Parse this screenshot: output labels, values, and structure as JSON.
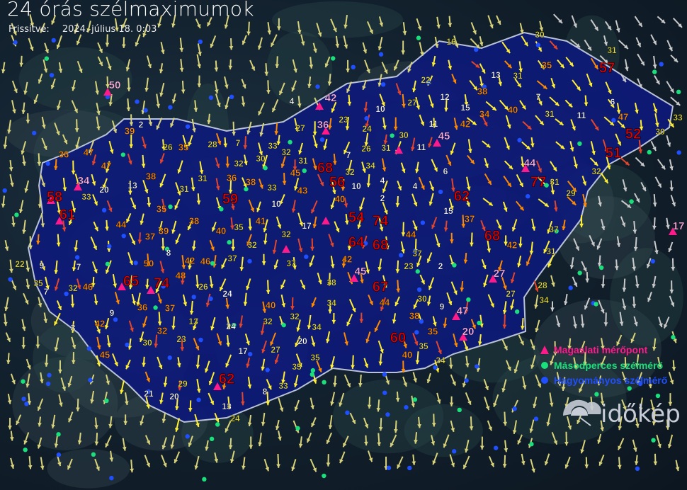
{
  "header": {
    "title": "24 órás szélmaximumok",
    "updated_label": "Frissítve:",
    "updated_value": "2024. július 18. 0:03"
  },
  "legend": [
    {
      "label": "Magaslati mérőpont",
      "symbol": "triangle",
      "color": "#ff1a8c"
    },
    {
      "label": "Másodperces szélmérő",
      "symbol": "circle",
      "color": "#19e07a"
    },
    {
      "label": "Hagyományos szélmérő",
      "symbol": "circle",
      "color": "#1f4fff"
    }
  ],
  "logo": {
    "text": "időkép"
  },
  "colors": {
    "red": "#e00000",
    "orange": "#ff8a00",
    "yellow": "#e6dc3c",
    "white": "#ffffff",
    "pink": "#ffb0e0",
    "country": "#0d1a7a",
    "border": "#b9c2d6"
  },
  "stations": {
    "red": [
      "57",
      "52",
      "51",
      "77",
      "62",
      "68",
      "74",
      "54",
      "64",
      "68",
      "67",
      "60",
      "68",
      "56",
      "59",
      "74",
      "65",
      "58",
      "61",
      "62"
    ],
    "orange": [
      "39",
      "47",
      "47",
      "36",
      "44",
      "38",
      "35",
      "39",
      "37",
      "50",
      "48",
      "46",
      "42",
      "40",
      "38",
      "36",
      "38",
      "41",
      "35",
      "45",
      "43",
      "40",
      "44",
      "42",
      "38",
      "35",
      "40",
      "44",
      "42",
      "40",
      "38",
      "34",
      "35",
      "42",
      "37",
      "47",
      "46",
      "45",
      "42",
      "36",
      "37",
      "32",
      "40"
    ],
    "white": [
      "2",
      "13",
      "20",
      "8",
      "9",
      "7",
      "7",
      "3",
      "9",
      "21",
      "20",
      "13",
      "8",
      "17",
      "24",
      "24",
      "10",
      "17",
      "10",
      "4",
      "2",
      "4",
      "6",
      "15",
      "9",
      "2",
      "11",
      "11",
      "10",
      "12",
      "15",
      "13",
      "7",
      "11",
      "6",
      "7",
      "4",
      "20"
    ],
    "yellow": [
      "30",
      "31",
      "31",
      "31",
      "31",
      "29",
      "32",
      "30",
      "33",
      "37",
      "31",
      "28",
      "34",
      "27",
      "30",
      "35",
      "34",
      "23",
      "37",
      "34",
      "38",
      "32",
      "34",
      "35",
      "33",
      "35",
      "27",
      "32",
      "37",
      "32",
      "32",
      "37",
      "35",
      "26",
      "23",
      "30",
      "29",
      "13",
      "24",
      "34",
      "32",
      "31",
      "26",
      "30",
      "24",
      "27",
      "22",
      "16",
      "23",
      "27",
      "32",
      "33",
      "30",
      "33",
      "31",
      "32",
      "31",
      "31",
      "28",
      "26",
      "7",
      "33",
      "32",
      "35",
      "22"
    ],
    "pink": [
      "50",
      "42",
      "36",
      "45",
      "44",
      "34",
      "45",
      "47",
      "27",
      "20",
      "17"
    ]
  }
}
